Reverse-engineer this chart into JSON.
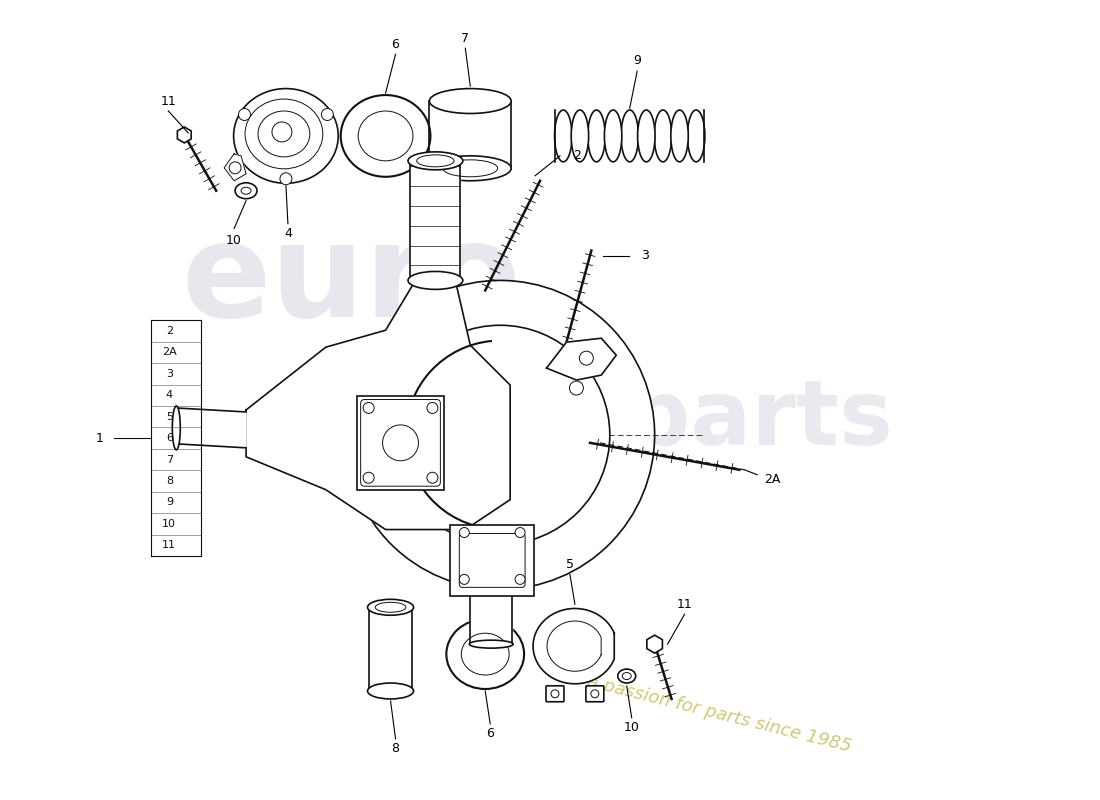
{
  "background_color": "#ffffff",
  "line_color": "#111111",
  "watermark_gray": "#d0d0dc",
  "watermark_yellow": "#c8c060",
  "legend_items": [
    "2",
    "2A",
    "3",
    "4",
    "5",
    "6",
    "7",
    "8",
    "9",
    "10",
    "11"
  ]
}
